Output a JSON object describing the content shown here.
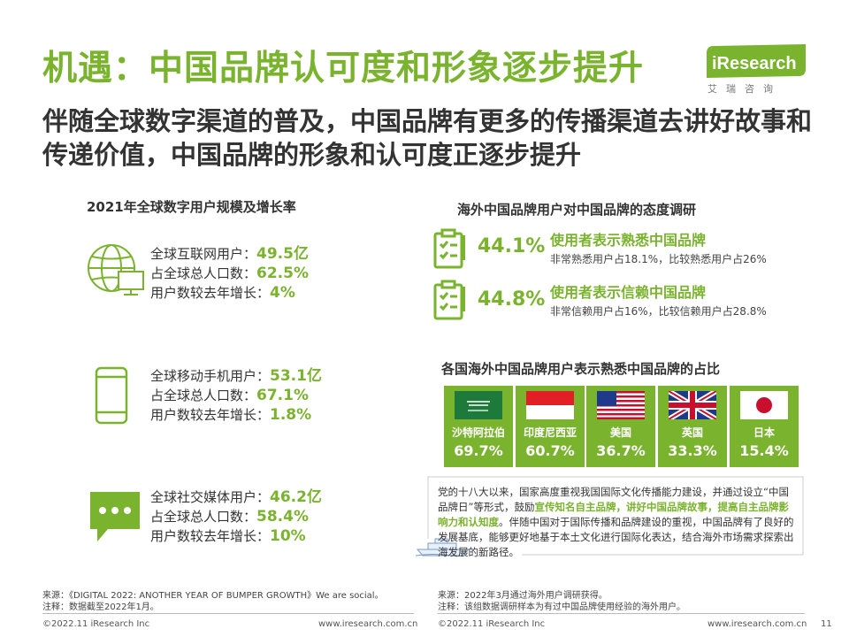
{
  "header": {
    "title": "机遇：中国品牌认可度和形象逐步提升",
    "subtitle": "伴随全球数字渠道的普及，中国品牌有更多的传播渠道去讲好故事和传递价值，中国品牌的形象和认可度正逐步提升",
    "logo_text": "iResearch",
    "logo_cn": "艾瑞咨询"
  },
  "left_section": {
    "title": "2021年全球数字用户规模及增长率",
    "groups": [
      {
        "icon": "globe-computer-icon",
        "lines": [
          {
            "label": "全球互联网用户：",
            "value": "49.5亿"
          },
          {
            "label": "占全球总人口数：",
            "value": "62.5%"
          },
          {
            "label": "用户数较去年增长：",
            "value": "4%"
          }
        ]
      },
      {
        "icon": "mobile-phone-icon",
        "lines": [
          {
            "label": "全球移动手机用户：",
            "value": "53.1亿"
          },
          {
            "label": "占全球总人口数：",
            "value": "67.1%"
          },
          {
            "label": "用户数较去年增长：",
            "value": "1.8%"
          }
        ]
      },
      {
        "icon": "chat-bubble-icon",
        "lines": [
          {
            "label": "全球社交媒体用户：",
            "value": "46.2亿"
          },
          {
            "label": "占全球总人口数：",
            "value": "58.4%"
          },
          {
            "label": "用户数较去年增长：",
            "value": "10%"
          }
        ]
      }
    ],
    "source_line1": "来源：《DIGITAL 2022: ANOTHER YEAR OF BUMPER GROWTH》We are social。",
    "source_line2": "注释：数据截至2022年1月。"
  },
  "right_section": {
    "title": "海外中国品牌用户对中国品牌的态度调研",
    "items": [
      {
        "icon": "clipboard-check-icon",
        "pct": "44.1%",
        "headline": "使用者表示熟悉中国品牌",
        "detail": "非常熟悉用户占18.1%，比较熟悉用户占26%"
      },
      {
        "icon": "clipboard-check-icon",
        "pct": "44.8%",
        "headline": "使用者表示信赖中国品牌",
        "detail": "非常信赖用户占16%，比较信赖用户占28.8%"
      }
    ],
    "countries_title": "各国海外中国品牌用户表示熟悉中国品牌的占比",
    "countries": [
      {
        "name": "沙特阿拉伯",
        "value": "69.7%",
        "flag": "saudi-flag-icon"
      },
      {
        "name": "印度尼西亚",
        "value": "60.7%",
        "flag": "indonesia-flag-icon"
      },
      {
        "name": "美国",
        "value": "36.7%",
        "flag": "usa-flag-icon"
      },
      {
        "name": "英国",
        "value": "33.3%",
        "flag": "uk-flag-icon"
      },
      {
        "name": "日本",
        "value": "15.4%",
        "flag": "japan-flag-icon"
      }
    ],
    "quote": {
      "p1": "党的十八大以来，国家高度重视我国国际文化传播能力建设，并通过设立“中国品牌日”等形式，鼓励",
      "h1": "宣传知名自主品牌，讲好中国品牌故事，提高自主品牌影响力和认知度",
      "p2": "。伴随中国对于国际传播和品牌建设的重视，中国品牌有了良好的发展基底，能够更好地基于本土文化进行国际化表达，结合海外市场需求探索出海发展的新路径。"
    },
    "source_line1": "来源：2022年3月通过海外用户调研获得。",
    "source_line2": "注释：该组数据调研样本为有过中国品牌使用经验的海外用户。"
  },
  "footer": {
    "left_copyright": "©2022.11 iResearch Inc",
    "left_url": "www.iresearch.com.cn",
    "right_copyright": "©2022.11 iResearch Inc",
    "right_url": "www.iresearch.com.cn",
    "page_number": "11"
  },
  "colors": {
    "accent": "#7ab32e",
    "text": "#333333"
  }
}
